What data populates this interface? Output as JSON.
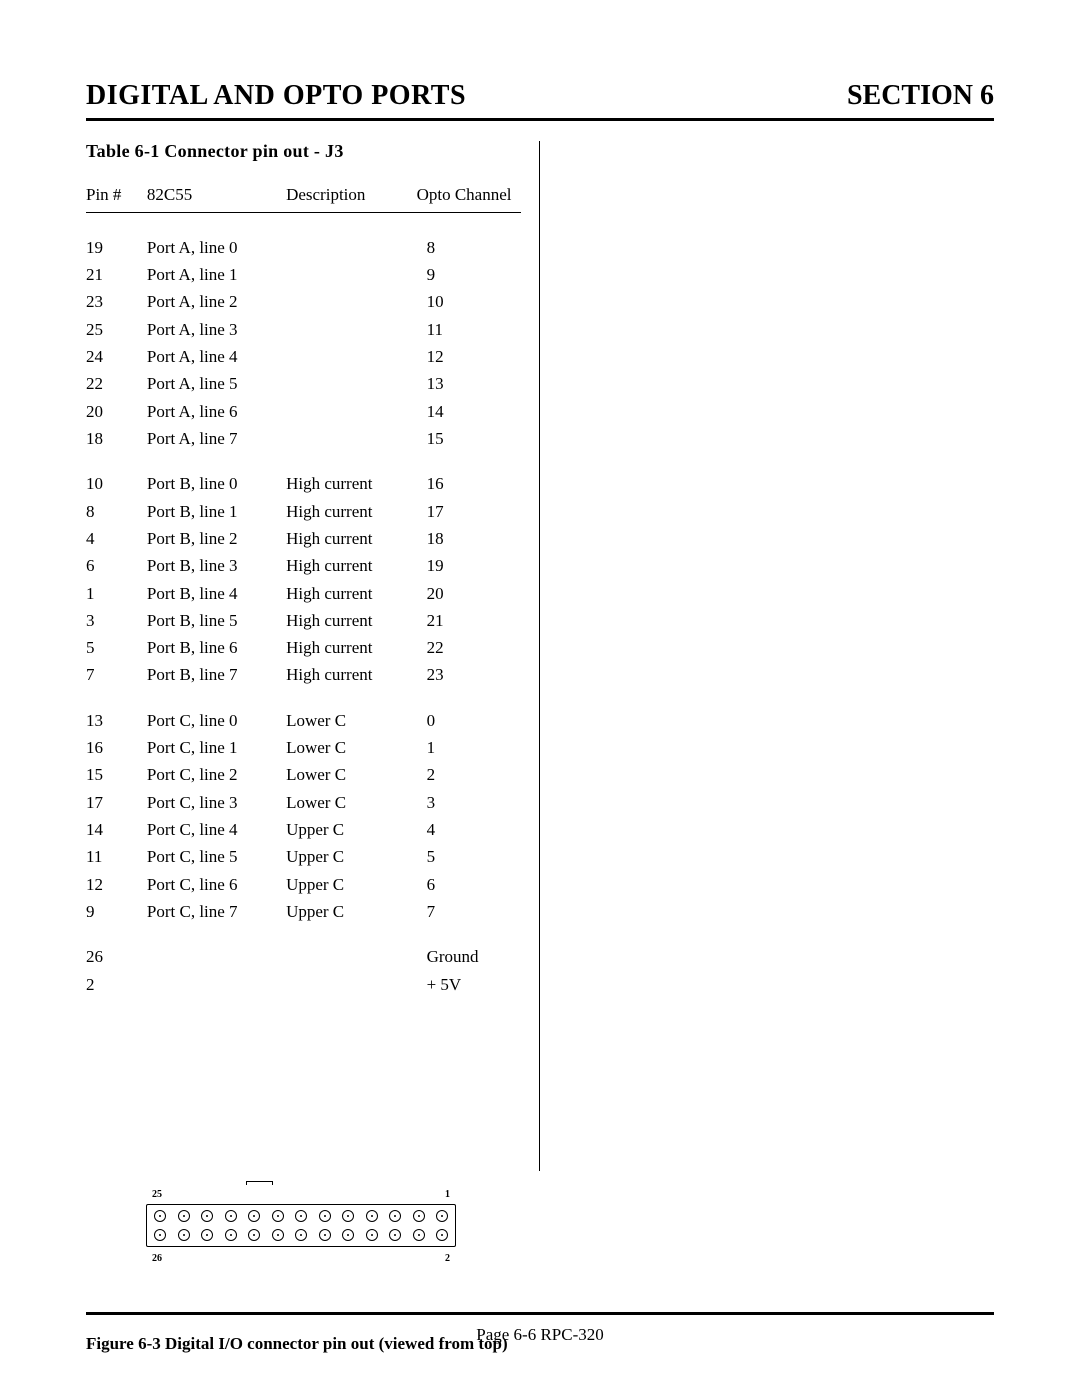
{
  "header": {
    "left": "DIGITAL AND OPTO PORTS",
    "right": "SECTION 6"
  },
  "table": {
    "caption": "Table 6-1   Connector pin out - J3",
    "columns": [
      "Pin #",
      "82C55",
      "Description",
      "Opto Channel"
    ],
    "groups": [
      [
        {
          "pin": "19",
          "port": "Port A, line 0",
          "desc": "",
          "opto": "8"
        },
        {
          "pin": "21",
          "port": "Port A, line 1",
          "desc": "",
          "opto": "9"
        },
        {
          "pin": "23",
          "port": "Port A, line 2",
          "desc": "",
          "opto": "10"
        },
        {
          "pin": "25",
          "port": "Port A, line 3",
          "desc": "",
          "opto": "11"
        },
        {
          "pin": "24",
          "port": "Port A, line 4",
          "desc": "",
          "opto": "12"
        },
        {
          "pin": "22",
          "port": "Port A, line 5",
          "desc": "",
          "opto": "13"
        },
        {
          "pin": "20",
          "port": "Port A, line 6",
          "desc": "",
          "opto": "14"
        },
        {
          "pin": "18",
          "port": "Port A, line 7",
          "desc": "",
          "opto": "15"
        }
      ],
      [
        {
          "pin": "10",
          "port": "Port B, line 0",
          "desc": "High current",
          "opto": "16"
        },
        {
          "pin": "8",
          "port": "Port B, line 1",
          "desc": "High current",
          "opto": "17"
        },
        {
          "pin": "4",
          "port": "Port B, line 2",
          "desc": "High current",
          "opto": "18"
        },
        {
          "pin": "6",
          "port": "Port B, line 3",
          "desc": "High current",
          "opto": "19"
        },
        {
          "pin": "1",
          "port": "Port B, line 4",
          "desc": "High current",
          "opto": "20"
        },
        {
          "pin": "3",
          "port": "Port B, line 5",
          "desc": "High current",
          "opto": "21"
        },
        {
          "pin": "5",
          "port": "Port B, line 6",
          "desc": "High current",
          "opto": "22"
        },
        {
          "pin": "7",
          "port": "Port B, line 7",
          "desc": "High current",
          "opto": "23"
        }
      ],
      [
        {
          "pin": "13",
          "port": "Port C, line 0",
          "desc": "Lower C",
          "opto": "0"
        },
        {
          "pin": "16",
          "port": "Port C, line 1",
          "desc": "Lower C",
          "opto": "1"
        },
        {
          "pin": "15",
          "port": "Port C, line 2",
          "desc": "Lower C",
          "opto": "2"
        },
        {
          "pin": "17",
          "port": "Port C, line 3",
          "desc": "Lower C",
          "opto": "3"
        },
        {
          "pin": "14",
          "port": "Port C, line 4",
          "desc": "Upper C",
          "opto": "4"
        },
        {
          "pin": "11",
          "port": "Port C, line 5",
          "desc": "Upper C",
          "opto": "5"
        },
        {
          "pin": "12",
          "port": "Port C, line 6",
          "desc": "Upper C",
          "opto": "6"
        },
        {
          "pin": "9",
          "port": "Port C, line 7",
          "desc": "Upper C",
          "opto": "7"
        }
      ],
      [
        {
          "pin": "26",
          "port": "",
          "desc": "",
          "opto": "Ground"
        },
        {
          "pin": "2",
          "port": "",
          "desc": "",
          "opto": "+ 5V"
        }
      ]
    ]
  },
  "connector": {
    "pins_per_row": 13,
    "labels": {
      "top_left": "25",
      "top_right": "1",
      "bottom_left": "26",
      "bottom_right": "2"
    }
  },
  "figure_caption": "Figure 6-3 Digital I/O connector pin out (viewed from top)",
  "footer": "Page 6-6   RPC-320"
}
